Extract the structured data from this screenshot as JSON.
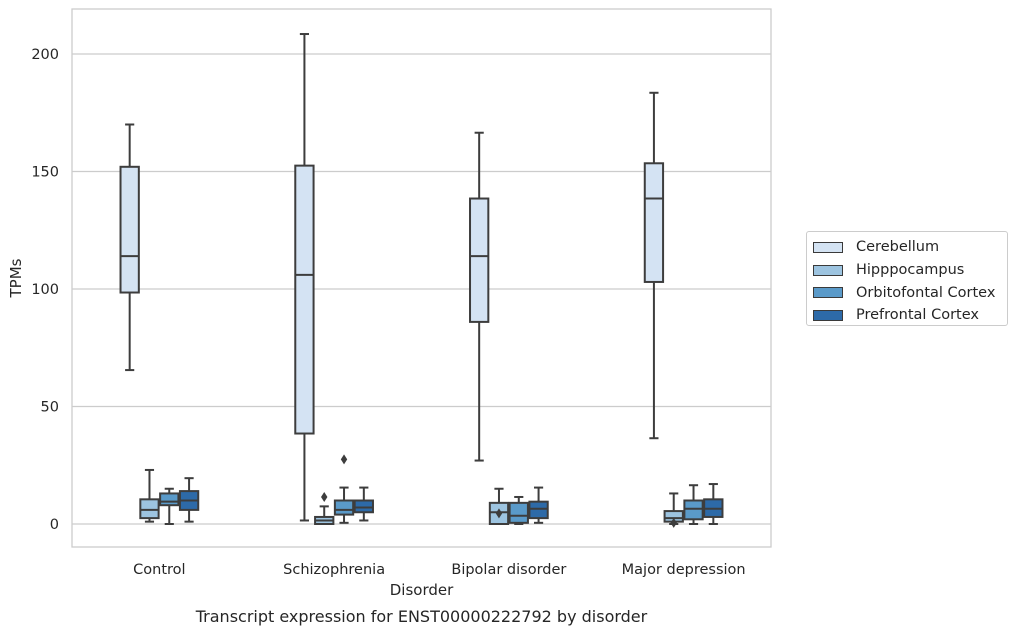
{
  "chart_data": {
    "type": "box",
    "title": "Transcript expression for ENST00000222792 by disorder",
    "xlabel": "Disorder",
    "ylabel": "TPMs",
    "ylim": [
      -10,
      220
    ],
    "yticks": [
      0,
      50,
      100,
      150,
      200
    ],
    "grid": "horizontal",
    "legend_position": "right",
    "categories": [
      "Control",
      "Schizophrenia",
      "Bipolar disorder",
      "Major depression"
    ],
    "series": [
      {
        "name": "Cerebellum",
        "color": "#d4e3f3",
        "boxes": [
          {
            "whislo": 65.5,
            "q1": 98.5,
            "med": 114,
            "q3": 152,
            "whishi": 170,
            "fliers": []
          },
          {
            "whislo": 1.5,
            "q1": 38.5,
            "med": 106,
            "q3": 152.5,
            "whishi": 208.5,
            "fliers": []
          },
          {
            "whislo": 27,
            "q1": 86,
            "med": 114,
            "q3": 138.5,
            "whishi": 166.5,
            "fliers": []
          },
          {
            "whislo": 36.5,
            "q1": 103,
            "med": 138.5,
            "q3": 153.5,
            "whishi": 183.5,
            "fliers": []
          }
        ]
      },
      {
        "name": "Hipppocampus",
        "color": "#9dc4e0",
        "boxes": [
          {
            "whislo": 1,
            "q1": 2.5,
            "med": 6,
            "q3": 10.5,
            "whishi": 23,
            "fliers": []
          },
          {
            "whislo": 0,
            "q1": 0,
            "med": 1.5,
            "q3": 3,
            "whishi": 7.5,
            "fliers": [
              11.5
            ]
          },
          {
            "whislo": 0,
            "q1": 0,
            "med": 5,
            "q3": 9,
            "whishi": 15,
            "fliers": [
              4.5
            ]
          },
          {
            "whislo": 0,
            "q1": 1,
            "med": 2.5,
            "q3": 5.5,
            "whishi": 13,
            "fliers": [
              0.5
            ]
          }
        ]
      },
      {
        "name": "Orbitofontal Cortex",
        "color": "#5a9ac9",
        "boxes": [
          {
            "whislo": 0,
            "q1": 8,
            "med": 9.5,
            "q3": 13,
            "whishi": 15,
            "fliers": []
          },
          {
            "whislo": 0.5,
            "q1": 4,
            "med": 6,
            "q3": 10,
            "whishi": 15.5,
            "fliers": [
              27.5
            ]
          },
          {
            "whislo": 0,
            "q1": 0.5,
            "med": 3.5,
            "q3": 9,
            "whishi": 11.5,
            "fliers": []
          },
          {
            "whislo": 0,
            "q1": 2,
            "med": 6.5,
            "q3": 10,
            "whishi": 16.5,
            "fliers": []
          }
        ]
      },
      {
        "name": "Prefrontal Cortex",
        "color": "#2d6aa8",
        "boxes": [
          {
            "whislo": 1,
            "q1": 6,
            "med": 10,
            "q3": 14,
            "whishi": 19.5,
            "fliers": []
          },
          {
            "whislo": 1.5,
            "q1": 5,
            "med": 7,
            "q3": 10,
            "whishi": 15.5,
            "fliers": []
          },
          {
            "whislo": 0.5,
            "q1": 2.5,
            "med": 6.5,
            "q3": 9.5,
            "whishi": 15.5,
            "fliers": []
          },
          {
            "whislo": 0,
            "q1": 3,
            "med": 6.5,
            "q3": 10.5,
            "whishi": 17,
            "fliers": []
          }
        ]
      }
    ]
  }
}
